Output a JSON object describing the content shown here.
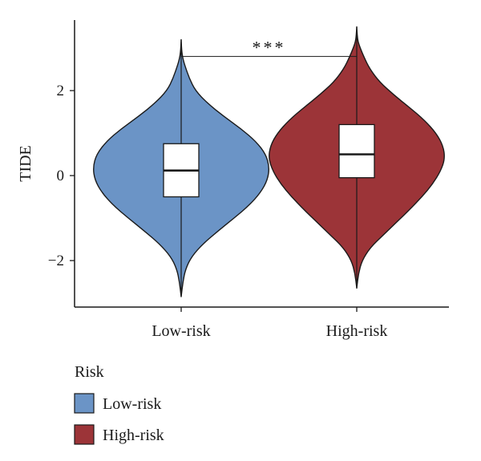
{
  "chart_data": {
    "type": "violin",
    "title": "",
    "xlabel": "",
    "ylabel": "TIDE",
    "ylim": [
      -3.1,
      3.7
    ],
    "yticks": [
      -2,
      0,
      2
    ],
    "ytick_labels": [
      "−2",
      "0",
      "2"
    ],
    "categories": [
      "Low-risk",
      "High-risk"
    ],
    "series": [
      {
        "name": "Low-risk",
        "color": "#6b94c6",
        "min": -2.85,
        "q1": -0.5,
        "median": 0.12,
        "q3": 0.75,
        "max": 3.2,
        "density": [
          [
            -2.85,
            0.0
          ],
          [
            -2.5,
            0.02
          ],
          [
            -2.2,
            0.05
          ],
          [
            -1.9,
            0.12
          ],
          [
            -1.6,
            0.25
          ],
          [
            -1.3,
            0.42
          ],
          [
            -1.0,
            0.6
          ],
          [
            -0.7,
            0.77
          ],
          [
            -0.4,
            0.9
          ],
          [
            -0.1,
            0.98
          ],
          [
            0.2,
            1.0
          ],
          [
            0.5,
            0.96
          ],
          [
            0.8,
            0.85
          ],
          [
            1.1,
            0.68
          ],
          [
            1.4,
            0.48
          ],
          [
            1.7,
            0.3
          ],
          [
            2.0,
            0.16
          ],
          [
            2.3,
            0.09
          ],
          [
            2.6,
            0.04
          ],
          [
            2.75,
            0.02
          ],
          [
            2.9,
            0.008
          ],
          [
            3.05,
            0.003
          ],
          [
            3.2,
            0.0
          ]
        ]
      },
      {
        "name": "High-risk",
        "color": "#9c3438",
        "min": -2.65,
        "q1": -0.05,
        "median": 0.5,
        "q3": 1.2,
        "max": 3.5,
        "density": [
          [
            -2.65,
            0.0
          ],
          [
            -2.3,
            0.02
          ],
          [
            -2.0,
            0.06
          ],
          [
            -1.7,
            0.15
          ],
          [
            -1.4,
            0.3
          ],
          [
            -1.1,
            0.45
          ],
          [
            -0.8,
            0.6
          ],
          [
            -0.5,
            0.74
          ],
          [
            -0.2,
            0.86
          ],
          [
            0.1,
            0.95
          ],
          [
            0.4,
            1.0
          ],
          [
            0.7,
            0.98
          ],
          [
            1.0,
            0.9
          ],
          [
            1.3,
            0.77
          ],
          [
            1.6,
            0.6
          ],
          [
            1.9,
            0.42
          ],
          [
            2.2,
            0.26
          ],
          [
            2.5,
            0.15
          ],
          [
            2.8,
            0.08
          ],
          [
            3.0,
            0.04
          ],
          [
            3.15,
            0.015
          ],
          [
            3.3,
            0.005
          ],
          [
            3.5,
            0.0
          ]
        ]
      }
    ],
    "annotation": {
      "text": "***",
      "between": [
        "Low-risk",
        "High-risk"
      ],
      "y": 3.2
    },
    "legend": {
      "title": "Risk",
      "position": "bottom-left",
      "items": [
        {
          "label": "Low-risk",
          "color": "#6b94c6"
        },
        {
          "label": "High-risk",
          "color": "#9c3438"
        }
      ]
    },
    "grid": false
  }
}
